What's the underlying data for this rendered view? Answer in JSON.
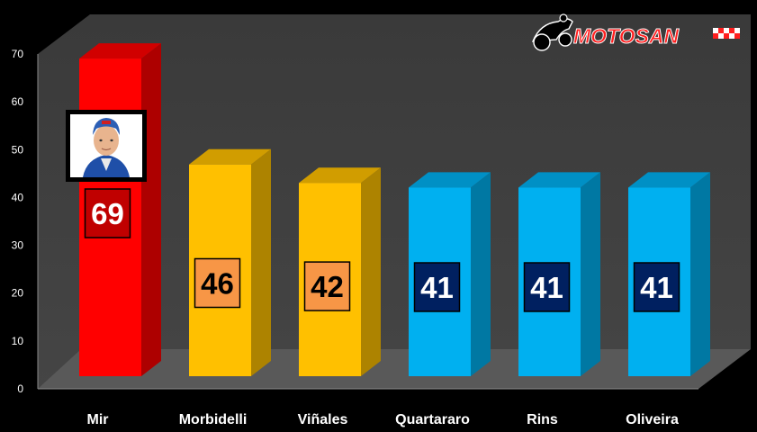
{
  "brand": {
    "logo_text": "MOTOSAN",
    "colors": {
      "text_fill": "#ff1f1f",
      "outline": "#ffffff"
    }
  },
  "avatar": {
    "icon": "rider-portrait-icon"
  },
  "chart_data": {
    "type": "bar",
    "categories": [
      "Mir",
      "Morbidelli",
      "Viñales",
      "Quartararo",
      "Rins",
      "Oliveira"
    ],
    "values": [
      69,
      46,
      42,
      41,
      41,
      41
    ],
    "data_labels": [
      "69",
      "46",
      "42",
      "41",
      "41",
      "41"
    ],
    "ylim": [
      0,
      70
    ],
    "yticks": [
      "0",
      "10",
      "20",
      "30",
      "40",
      "50",
      "60",
      "70"
    ],
    "grid": false,
    "title": "",
    "xlabel": "",
    "ylabel": "",
    "colors": {
      "bars": [
        "#ff0000",
        "#ffc000",
        "#ffc000",
        "#00b0f0",
        "#00b0f0",
        "#00b0f0"
      ],
      "label_boxes": [
        "#c00000",
        "#f79646",
        "#f79646",
        "#002060",
        "#002060",
        "#002060"
      ],
      "label_text": [
        "#ffffff",
        "#000000",
        "#000000",
        "#ffffff",
        "#ffffff",
        "#ffffff"
      ]
    }
  }
}
